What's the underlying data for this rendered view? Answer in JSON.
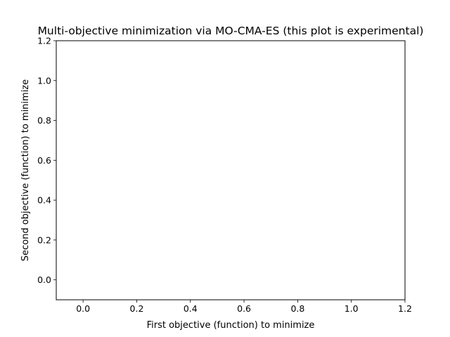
{
  "chart_data": {
    "type": "scatter",
    "title": "Multi-objective minimization via MO-CMA-ES (this plot is experimental)",
    "xlabel": "First objective (function) to minimize",
    "ylabel": "Second objective (function) to minimize",
    "xlim": [
      -0.1,
      1.2
    ],
    "ylim": [
      -0.1,
      1.2
    ],
    "xticks": [
      "0.0",
      "0.2",
      "0.4",
      "0.6",
      "0.8",
      "1.0",
      "1.2"
    ],
    "yticks": [
      "0.0",
      "0.2",
      "0.4",
      "0.6",
      "0.8",
      "1.0",
      "1.2"
    ],
    "grid": false,
    "series": []
  }
}
